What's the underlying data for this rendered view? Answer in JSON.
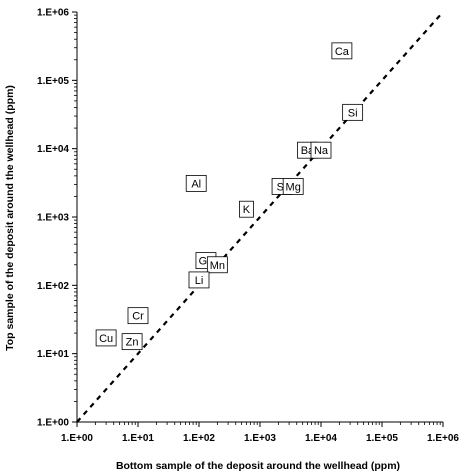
{
  "chart_data": {
    "type": "scatter",
    "title": "",
    "xlabel": "Bottom sample of the deposit around the wellhead (ppm)",
    "ylabel": "Top sample of the deposit around the wellhead (ppm)",
    "x_scale": "log",
    "y_scale": "log",
    "xlim": [
      1,
      1000000
    ],
    "ylim": [
      1,
      1000000
    ],
    "x_ticks": [
      "1.E+00",
      "1.E+01",
      "1.E+02",
      "1.E+03",
      "1.E+04",
      "1.E+05",
      "1.E+06"
    ],
    "y_ticks": [
      "1.E+00",
      "1.E+01",
      "1.E+02",
      "1.E+03",
      "1.E+04",
      "1.E+05",
      "1.E+06"
    ],
    "grid": false,
    "legend": "none",
    "reference_line": {
      "style": "dashed",
      "from": [
        1,
        1
      ],
      "to": [
        1000000,
        1000000
      ]
    },
    "points": [
      {
        "label": "Ca",
        "x": 22000,
        "y": 270000
      },
      {
        "label": "Si",
        "x": 33000,
        "y": 34000
      },
      {
        "label": "Ba",
        "x": 6000,
        "y": 9500
      },
      {
        "label": "Na",
        "x": 10000,
        "y": 9500
      },
      {
        "label": "Sr",
        "x": 2300,
        "y": 2800
      },
      {
        "label": "Mg",
        "x": 3500,
        "y": 2800
      },
      {
        "label": "Al",
        "x": 90,
        "y": 3100
      },
      {
        "label": "K",
        "x": 600,
        "y": 1300
      },
      {
        "label": "Ga",
        "x": 130,
        "y": 230
      },
      {
        "label": "Mn",
        "x": 200,
        "y": 200
      },
      {
        "label": "Li",
        "x": 100,
        "y": 120
      },
      {
        "label": "Cr",
        "x": 10,
        "y": 36
      },
      {
        "label": "Cu",
        "x": 3,
        "y": 17
      },
      {
        "label": "Zn",
        "x": 8,
        "y": 15
      }
    ]
  }
}
